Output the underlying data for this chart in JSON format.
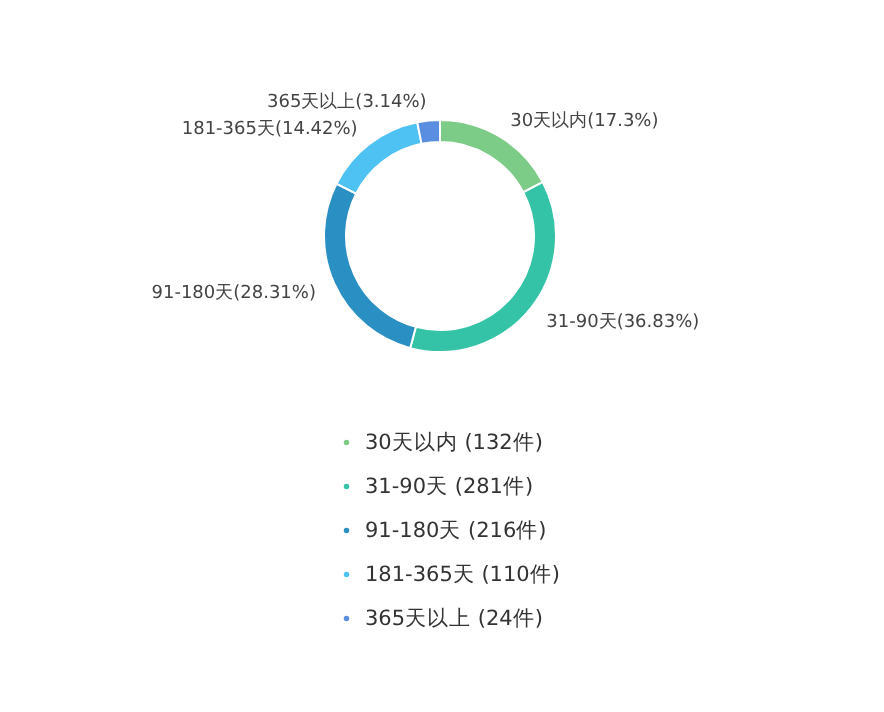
{
  "chart_data": {
    "type": "donut",
    "categories": [
      "30天以内  (132件)",
      "31-90天  (281件)",
      "91-180天  (216件)",
      "181-365天  (110件)",
      "365天以上  (24件)"
    ],
    "values": [
      17.3,
      36.83,
      28.31,
      14.42,
      3.14
    ],
    "value_labels": [
      "30天以内(17.3%)",
      "31-90天(36.83%)",
      "91-180天(28.31%)",
      "181-365天(14.42%)",
      "365天以上(3.14%)"
    ],
    "colors": [
      "#7ccb87",
      "#34c3a6",
      "#2a8fc2",
      "#4ec2f2",
      "#5a8ee0"
    ],
    "legend": "bottom"
  }
}
